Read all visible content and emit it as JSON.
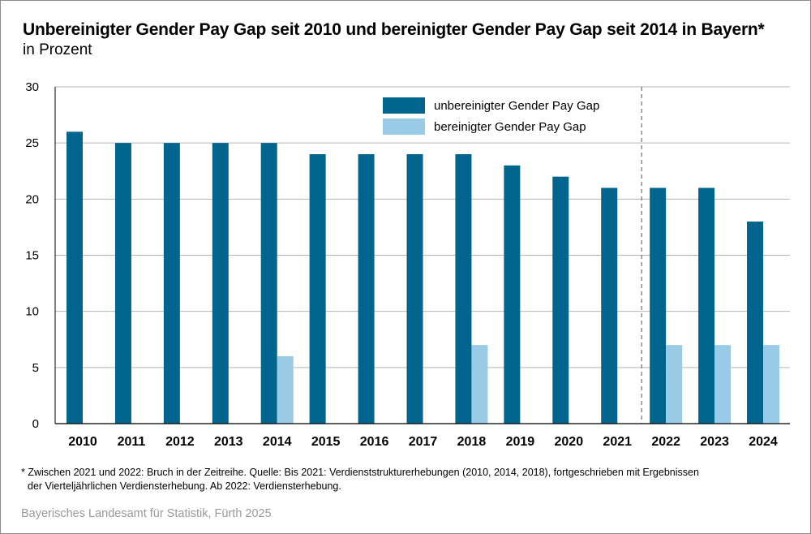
{
  "title": "Unbereinigter Gender Pay Gap seit 2010 und bereinigter Gender Pay Gap seit 2014 in Bayern*",
  "subtitle": "in Prozent",
  "footnote": {
    "line1": "* Zwischen 2021 und 2022: Bruch in der Zeitreihe. Quelle: Bis 2021: Verdienststrukturerhebungen (2010, 2014, 2018), fortgeschrieben mit Ergebnissen",
    "line2": "der Vierteljährlichen Verdiensterhebung. Ab 2022: Verdiensterhebung."
  },
  "source": "Bayerisches Landesamt für Statistik, Fürth 2025",
  "colors": {
    "unbereinigt": "#00648c",
    "bereinigt": "#9acbe6",
    "grid": "#b4b4b4",
    "break_line": "#6e6e6e"
  },
  "chart_data": {
    "type": "bar",
    "categories": [
      "2010",
      "2011",
      "2012",
      "2013",
      "2014",
      "2015",
      "2016",
      "2017",
      "2018",
      "2019",
      "2020",
      "2021",
      "2022",
      "2023",
      "2024"
    ],
    "series": [
      {
        "name": "unbereinigter Gender Pay Gap",
        "values": [
          26,
          25,
          25,
          25,
          25,
          24,
          24,
          24,
          24,
          23,
          22,
          21,
          21,
          21,
          18
        ]
      },
      {
        "name": "bereinigter Gender Pay Gap",
        "values": [
          null,
          null,
          null,
          null,
          6,
          null,
          null,
          null,
          7,
          null,
          null,
          null,
          7,
          7,
          7
        ]
      }
    ],
    "ylim": [
      0,
      30
    ],
    "yticks": [
      0,
      5,
      10,
      15,
      20,
      25,
      30
    ],
    "grid": true,
    "legend_position": "top-center",
    "series_break_between": [
      "2021",
      "2022"
    ]
  }
}
